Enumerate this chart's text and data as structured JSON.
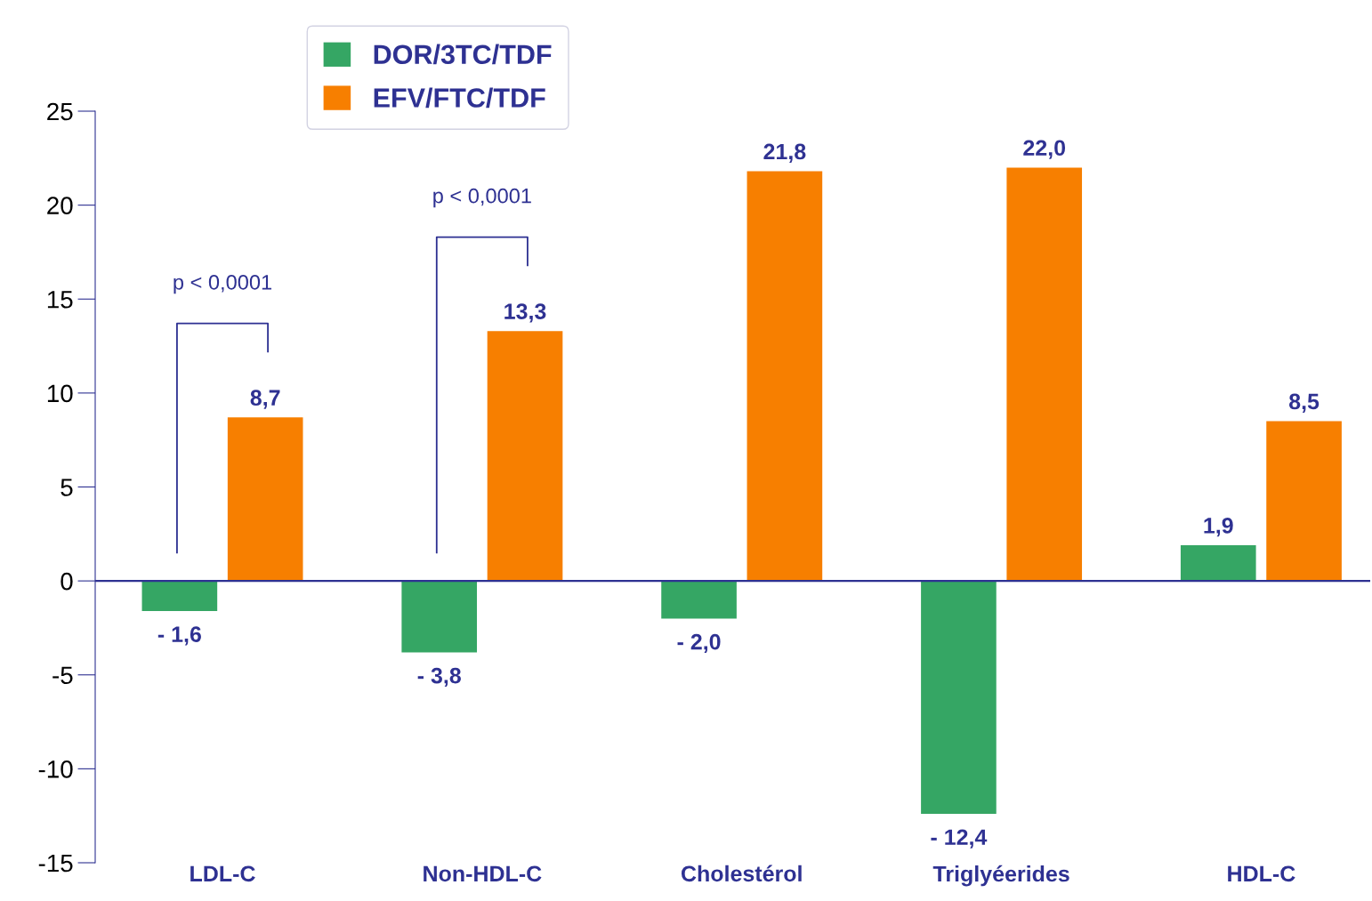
{
  "chart_data": {
    "type": "bar",
    "categories": [
      "LDL-C",
      "Non-HDL-C",
      "Cholestérol",
      "Triglyéerides",
      "HDL-C"
    ],
    "series": [
      {
        "name": "DOR/3TC/TDF",
        "color": "#35a664",
        "values": [
          -1.6,
          -3.8,
          -2.0,
          -12.4,
          1.9
        ],
        "value_labels": [
          "- 1,6",
          "- 3,8",
          "- 2,0",
          "- 12,4",
          "1,9"
        ]
      },
      {
        "name": "EFV/FTC/TDF",
        "color": "#f77f00",
        "values": [
          8.7,
          13.3,
          21.8,
          22.0,
          8.5
        ],
        "value_labels": [
          "8,7",
          "13,3",
          "21,8",
          "22,0",
          "8,5"
        ]
      }
    ],
    "ylim": [
      -15,
      25
    ],
    "yticks": [
      -15,
      -10,
      -5,
      0,
      5,
      10,
      15,
      20,
      25
    ],
    "annotations": [
      "p < 0,0001",
      "p < 0,0001"
    ],
    "ref_lines": [
      {
        "axis": "y",
        "value": 0,
        "color": "#2e3192"
      }
    ],
    "legend": "top left",
    "grid": false
  }
}
